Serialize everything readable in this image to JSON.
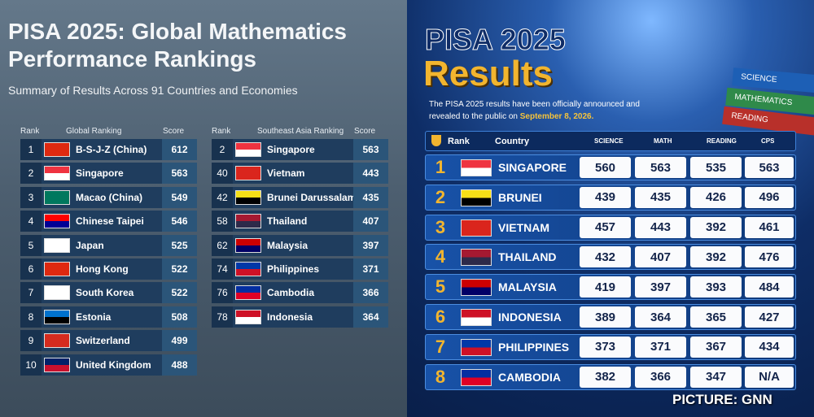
{
  "left": {
    "title": "PISA 2025: Global Mathematics Performance Rankings",
    "subtitle": "Summary of Results Across 91 Countries and Economies",
    "global_table": {
      "headers": [
        "Rank",
        "Global Ranking",
        "Score"
      ],
      "rows": [
        [
          "1",
          "B-S-J-Z (China)",
          "612"
        ],
        [
          "2",
          "Singapore",
          "563"
        ],
        [
          "3",
          "Macao (China)",
          "549"
        ],
        [
          "4",
          "Chinese Taipei",
          "546"
        ],
        [
          "5",
          "Japan",
          "525"
        ],
        [
          "6",
          "Hong Kong",
          "522"
        ],
        [
          "7",
          "South Korea",
          "522"
        ],
        [
          "8",
          "Estonia",
          "508"
        ],
        [
          "9",
          "Switzerland",
          "499"
        ],
        [
          "10",
          "United Kingdom",
          "488"
        ]
      ]
    },
    "sea_table": {
      "headers": [
        "Rank",
        "Southeast Asia Ranking",
        "Score"
      ],
      "rows": [
        [
          "2",
          "Singapore",
          "563"
        ],
        [
          "40",
          "Vietnam",
          "443"
        ],
        [
          "42",
          "Brunei Darussalam",
          "435"
        ],
        [
          "58",
          "Thailand",
          "407"
        ],
        [
          "62",
          "Malaysia",
          "397"
        ],
        [
          "74",
          "Philippines",
          "371"
        ],
        [
          "76",
          "Cambodia",
          "366"
        ],
        [
          "78",
          "Indonesia",
          "364"
        ]
      ]
    }
  },
  "right": {
    "title": "PISA 2025",
    "subtitle": "Results",
    "books": [
      "SCIENCE",
      "MATHEMATICS",
      "READING"
    ],
    "announcement": "The PISA 2025 results have been officially announced and revealed to the public on",
    "announcement_date": "September 8, 2026.",
    "table": {
      "headers": [
        "Rank",
        "Country",
        "SCIENCE",
        "MATH",
        "READING",
        "CPS"
      ],
      "rows": [
        [
          "1",
          "SINGAPORE",
          "560",
          "563",
          "535",
          "563"
        ],
        [
          "2",
          "BRUNEI",
          "439",
          "435",
          "426",
          "496"
        ],
        [
          "3",
          "VIETNAM",
          "457",
          "443",
          "392",
          "461"
        ],
        [
          "4",
          "THAILAND",
          "432",
          "407",
          "392",
          "476"
        ],
        [
          "5",
          "MALAYSIA",
          "419",
          "397",
          "393",
          "484"
        ],
        [
          "6",
          "INDONESIA",
          "389",
          "364",
          "365",
          "427"
        ],
        [
          "7",
          "PHILIPPINES",
          "373",
          "371",
          "367",
          "434"
        ],
        [
          "8",
          "CAMBODIA",
          "382",
          "366",
          "347",
          "N/A"
        ]
      ]
    }
  },
  "credit": "PICTURE: GNN"
}
